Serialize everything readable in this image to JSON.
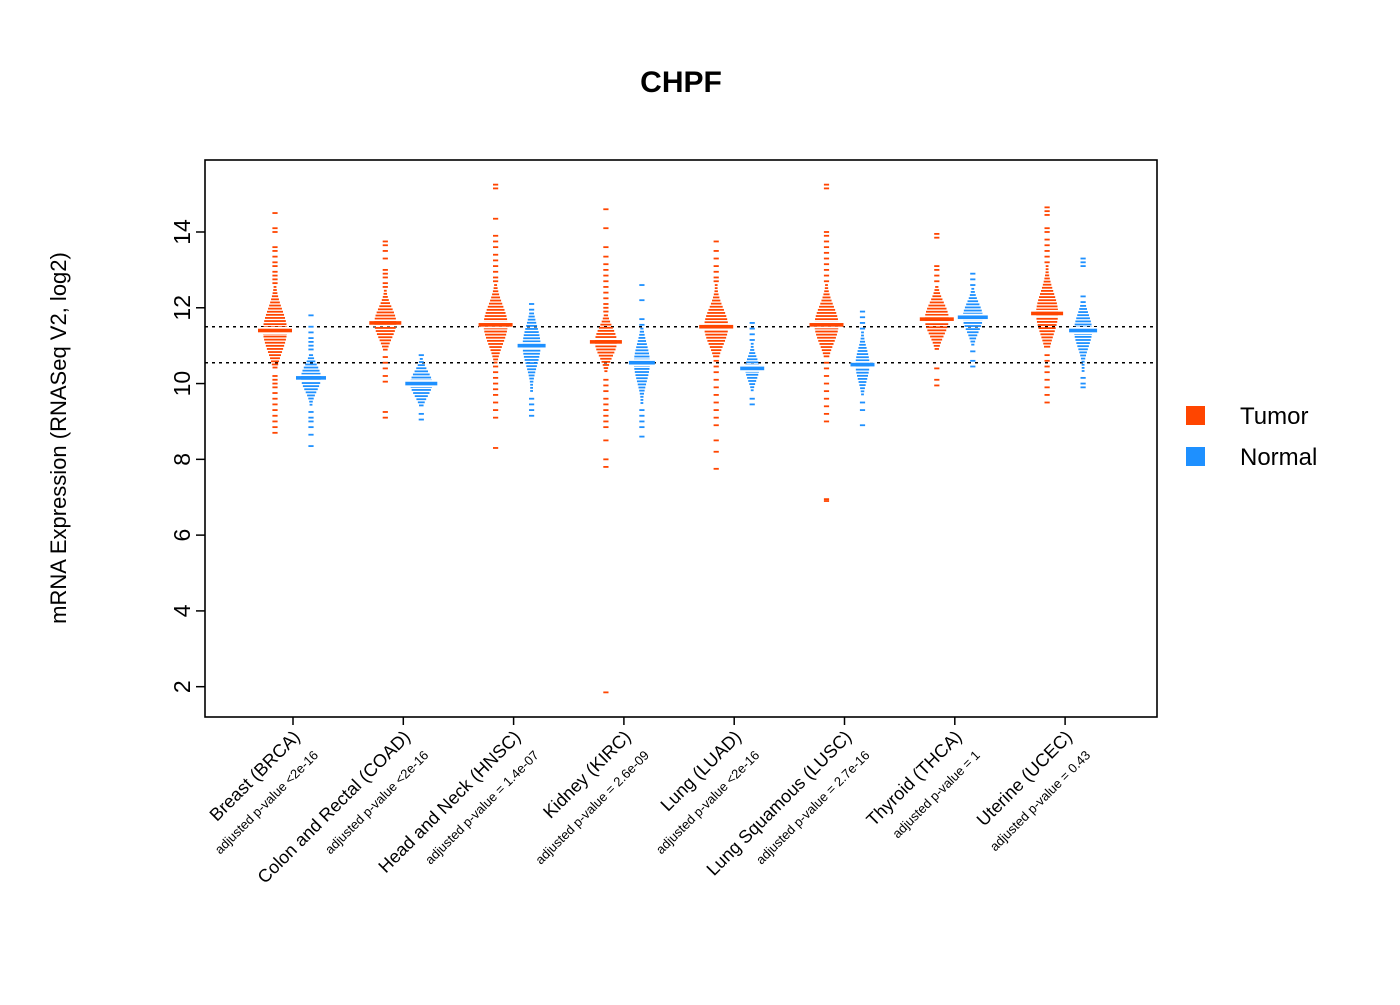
{
  "chart_data": {
    "type": "violin",
    "title": "CHPF",
    "ylabel": "mRNA Expression (RNASeq V2, log2)",
    "ylim": [
      1.2,
      15.9
    ],
    "yticks": [
      2,
      4,
      6,
      8,
      10,
      12,
      14
    ],
    "reference_lines": [
      11.5,
      10.55
    ],
    "grid": false,
    "legend_position": "right",
    "legend": [
      {
        "label": "Tumor",
        "color": "#FF4500"
      },
      {
        "label": "Normal",
        "color": "#1E90FF"
      }
    ],
    "groups": [
      {
        "label": "Breast (BRCA)",
        "pvalue_label": "adjusted p-value <2e-16",
        "tumor": {
          "median": 11.4,
          "body_low": 10.35,
          "body_high": 12.55,
          "width": 12,
          "outliers": [
            12.65,
            12.75,
            12.85,
            12.95,
            13.1,
            13.2,
            13.35,
            13.5,
            13.6,
            14.0,
            14.1,
            14.5,
            10.2,
            10.1,
            10.0,
            9.9,
            9.75,
            9.6,
            9.45,
            9.3,
            9.15,
            9.0,
            8.85,
            8.7
          ]
        },
        "normal": {
          "median": 10.15,
          "body_low": 9.4,
          "body_high": 10.75,
          "width": 10,
          "outliers": [
            10.9,
            11.0,
            11.1,
            11.2,
            11.35,
            11.5,
            11.8,
            9.25,
            9.1,
            9.0,
            8.85,
            8.65,
            8.35
          ]
        }
      },
      {
        "label": "Colon and Rectal (COAD)",
        "pvalue_label": "adjusted p-value <2e-16",
        "tumor": {
          "median": 11.6,
          "body_low": 10.85,
          "body_high": 12.45,
          "width": 11,
          "outliers": [
            12.55,
            12.65,
            12.8,
            12.9,
            13.0,
            13.3,
            13.5,
            13.65,
            13.75,
            10.7,
            10.55,
            10.4,
            10.2,
            10.05,
            9.25,
            9.1
          ]
        },
        "normal": {
          "median": 10.0,
          "body_low": 9.35,
          "body_high": 10.65,
          "width": 11,
          "outliers": [
            10.75,
            9.2,
            9.05
          ]
        }
      },
      {
        "label": "Head and Neck (HNSC)",
        "pvalue_label": "adjusted p-value = 1.4e-07",
        "tumor": {
          "median": 11.55,
          "body_low": 10.55,
          "body_high": 12.6,
          "width": 12,
          "outliers": [
            12.7,
            12.8,
            12.95,
            13.1,
            13.25,
            13.4,
            13.6,
            13.75,
            13.9,
            14.35,
            15.15,
            15.25,
            10.45,
            10.3,
            10.15,
            10.0,
            9.85,
            9.7,
            9.5,
            9.3,
            9.1,
            8.3
          ]
        },
        "normal": {
          "median": 11.0,
          "body_low": 9.75,
          "body_high": 11.85,
          "width": 9,
          "outliers": [
            11.95,
            12.1,
            9.6,
            9.45,
            9.3,
            9.15
          ]
        }
      },
      {
        "label": "Kidney (KIRC)",
        "pvalue_label": "adjusted p-value = 2.6e-09",
        "tumor": {
          "median": 11.1,
          "body_low": 10.25,
          "body_high": 11.8,
          "width": 11,
          "outliers": [
            11.9,
            12.0,
            12.1,
            12.25,
            12.4,
            12.55,
            12.7,
            12.85,
            13.0,
            13.15,
            13.35,
            13.6,
            14.1,
            14.6,
            10.1,
            9.95,
            9.8,
            9.6,
            9.45,
            9.3,
            9.15,
            9.0,
            8.85,
            8.5,
            8.0,
            7.8,
            1.85
          ]
        },
        "normal": {
          "median": 10.55,
          "body_low": 9.45,
          "body_high": 11.45,
          "width": 8,
          "outliers": [
            11.55,
            11.7,
            12.2,
            12.6,
            9.3,
            9.15,
            9.0,
            8.85,
            8.6
          ]
        }
      },
      {
        "label": "Lung (LUAD)",
        "pvalue_label": "adjusted p-value <2e-16",
        "tumor": {
          "median": 11.5,
          "body_low": 10.7,
          "body_high": 12.6,
          "width": 12,
          "outliers": [
            12.7,
            12.8,
            12.95,
            13.1,
            13.3,
            13.5,
            13.75,
            10.6,
            10.45,
            10.3,
            10.1,
            9.9,
            9.7,
            9.5,
            9.3,
            9.1,
            8.9,
            8.5,
            8.2,
            7.75
          ]
        },
        "normal": {
          "median": 10.4,
          "body_low": 9.8,
          "body_high": 11.05,
          "width": 7,
          "outliers": [
            11.15,
            11.3,
            11.45,
            11.6,
            9.6,
            9.45
          ]
        }
      },
      {
        "label": "Lung Squamous (LUSC)",
        "pvalue_label": "adjusted p-value = 2.7e-16",
        "tumor": {
          "median": 11.55,
          "body_low": 10.65,
          "body_high": 12.6,
          "width": 12,
          "outliers": [
            12.7,
            12.85,
            13.0,
            13.15,
            13.3,
            13.45,
            13.6,
            13.75,
            13.9,
            14.0,
            15.15,
            15.25,
            10.55,
            10.4,
            10.2,
            10.0,
            9.8,
            9.6,
            9.4,
            9.2,
            9.0,
            6.95,
            6.9
          ]
        },
        "normal": {
          "median": 10.5,
          "body_low": 9.65,
          "body_high": 11.35,
          "width": 7,
          "outliers": [
            11.45,
            11.6,
            11.75,
            11.9,
            9.5,
            9.3,
            8.9
          ]
        }
      },
      {
        "label": "Thyroid (THCA)",
        "pvalue_label": "adjusted p-value = 1",
        "tumor": {
          "median": 11.7,
          "body_low": 10.85,
          "body_high": 12.55,
          "width": 12,
          "outliers": [
            12.7,
            12.85,
            13.0,
            13.1,
            13.85,
            13.95,
            10.4,
            10.1,
            9.95
          ]
        },
        "normal": {
          "median": 11.75,
          "body_low": 11.0,
          "body_high": 12.5,
          "width": 10,
          "outliers": [
            12.6,
            12.75,
            12.9,
            10.85,
            10.6,
            10.45
          ]
        }
      },
      {
        "label": "Uterine (UCEC)",
        "pvalue_label": "adjusted p-value = 0.43",
        "tumor": {
          "median": 11.85,
          "body_low": 10.9,
          "body_high": 13.1,
          "width": 11,
          "outliers": [
            13.2,
            13.35,
            13.5,
            13.65,
            13.8,
            14.0,
            14.1,
            14.45,
            14.55,
            14.65,
            10.75,
            10.6,
            10.45,
            10.3,
            10.1,
            9.9,
            9.7,
            9.5
          ]
        },
        "normal": {
          "median": 11.4,
          "body_low": 10.3,
          "body_high": 12.05,
          "width": 9,
          "outliers": [
            12.15,
            12.3,
            13.1,
            13.2,
            13.3,
            10.15,
            10.0,
            9.9
          ]
        }
      }
    ]
  }
}
